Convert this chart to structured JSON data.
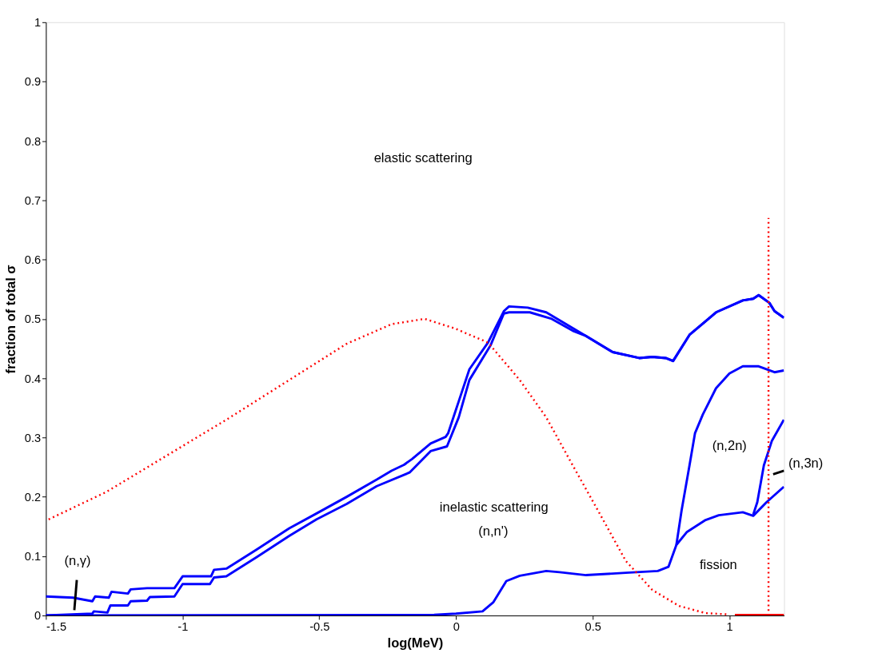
{
  "chart_data": {
    "type": "line",
    "xlabel": "log(MeV)",
    "ylabel": "fraction of total σ",
    "xlim": [
      -1.5,
      1.2
    ],
    "xticks": [
      -1.5,
      {
        "value": -1,
        "label": "-1"
      },
      -0.5,
      0,
      0.5,
      1
    ],
    "ylim": [
      0,
      1
    ],
    "yticks": [
      0,
      0.1,
      0.2,
      0.3,
      0.4,
      0.5,
      0.6,
      0.7,
      0.8,
      0.9,
      1
    ],
    "grid": false,
    "marker": "none",
    "series": [
      {
        "type": "line",
        "color": "#0000ff",
        "line_style": "solid",
        "x": [
          -1.5,
          -1.401,
          -1.33,
          -1.32,
          -1.27,
          -1.26,
          -1.2,
          -1.19,
          -1.13,
          -1.03,
          -1.0,
          -0.896,
          -0.885,
          -0.84,
          -0.73,
          -0.61,
          -0.51,
          -0.4,
          -0.29,
          -0.236,
          -0.19,
          -0.16,
          -0.093,
          -0.038,
          -0.029,
          0.01,
          0.049,
          0.117,
          0.175,
          0.194,
          0.262,
          0.33,
          0.476,
          0.573,
          0.67,
          0.718,
          0.767,
          0.794,
          0.854,
          0.913,
          0.951,
          1.049,
          1.087,
          1.107,
          1.146,
          1.165,
          1.199
        ],
        "values": [
          0.032,
          0.03,
          0.024,
          0.032,
          0.03,
          0.04,
          0.037,
          0.044,
          0.046,
          0.046,
          0.066,
          0.066,
          0.077,
          0.079,
          0.111,
          0.147,
          0.172,
          0.2,
          0.229,
          0.244,
          0.254,
          0.264,
          0.29,
          0.301,
          0.307,
          0.361,
          0.415,
          0.46,
          0.513,
          0.521,
          0.519,
          0.511,
          0.471,
          0.444,
          0.434,
          0.436,
          0.434,
          0.429,
          0.473,
          0.496,
          0.511,
          0.531,
          0.534,
          0.54,
          0.527,
          0.513,
          0.502
        ]
      },
      {
        "type": "line",
        "color": "#0000ff",
        "line_style": "solid",
        "x": [
          -1.5,
          -1.33,
          -1.325,
          -1.275,
          -1.264,
          -1.2,
          -1.19,
          -1.13,
          -1.12,
          -1.03,
          -1.0,
          -0.9,
          -0.885,
          -0.84,
          -0.73,
          -0.61,
          -0.51,
          -0.4,
          -0.29,
          -0.17,
          -0.093,
          -0.033,
          0.01,
          0.049,
          0.126,
          0.175,
          0.194,
          0.27,
          0.35,
          0.427,
          0.476,
          0.573,
          0.67,
          0.718,
          0.767,
          0.794,
          0.854,
          0.913,
          0.951,
          1.049,
          1.087,
          1.107,
          1.146,
          1.165,
          1.199
        ],
        "values": [
          0,
          0.003,
          0.007,
          0.005,
          0.017,
          0.017,
          0.024,
          0.025,
          0.031,
          0.032,
          0.053,
          0.053,
          0.064,
          0.066,
          0.098,
          0.134,
          0.162,
          0.188,
          0.218,
          0.241,
          0.277,
          0.285,
          0.334,
          0.397,
          0.455,
          0.509,
          0.511,
          0.511,
          0.5,
          0.48,
          0.471,
          0.444,
          0.434,
          0.436,
          0.434,
          0.429,
          0.473,
          0.496,
          0.511,
          0.531,
          0.534,
          0.54,
          0.527,
          0.513,
          0.502
        ]
      },
      {
        "type": "line",
        "color": "#0000ff",
        "line_style": "solid",
        "x": [
          -1.5,
          -0.08,
          0,
          0.097,
          0.136,
          0.184,
          0.233,
          0.33,
          0.379,
          0.476,
          0.621,
          0.738,
          0.777,
          0.806,
          0.845,
          0.913,
          0.961,
          1.049,
          1.087,
          1.136,
          1.199
        ],
        "values": [
          0,
          0.001,
          0.003,
          0.007,
          0.022,
          0.058,
          0.067,
          0.075,
          0.073,
          0.068,
          0.072,
          0.075,
          0.082,
          0.119,
          0.141,
          0.161,
          0.169,
          0.174,
          0.168,
          0.191,
          0.217
        ]
      },
      {
        "type": "line",
        "color": "#0000ff",
        "line_style": "solid",
        "x": [
          0.806,
          0.825,
          0.854,
          0.874,
          0.903,
          0.951,
          1.0,
          1.049,
          1.107,
          1.165,
          1.199
        ],
        "values": [
          0.119,
          0.177,
          0.253,
          0.307,
          0.339,
          0.383,
          0.408,
          0.42,
          0.42,
          0.41,
          0.413
        ]
      },
      {
        "type": "line",
        "color": "#0000ff",
        "line_style": "solid",
        "x": [
          1.087,
          1.102,
          1.126,
          1.155,
          1.199
        ],
        "values": [
          0.17,
          0.191,
          0.253,
          0.294,
          0.33
        ]
      },
      {
        "type": "line",
        "color": "#ff0000",
        "line_style": "dotted",
        "x": [
          -1.49,
          -1.28,
          -1.06,
          -0.84,
          -0.62,
          -0.4,
          -0.236,
          -0.115,
          -0.005,
          0.117,
          0.233,
          0.33,
          0.427,
          0.524,
          0.621,
          0.718,
          0.816,
          0.913,
          0.99
        ],
        "values": [
          0.162,
          0.208,
          0.269,
          0.33,
          0.394,
          0.458,
          0.491,
          0.5,
          0.484,
          0.46,
          0.397,
          0.334,
          0.253,
          0.173,
          0.092,
          0.043,
          0.016,
          0.004,
          0.002
        ]
      },
      {
        "type": "line",
        "color": "#ff0000",
        "line_style": "dotted",
        "x": [
          1.143,
          1.143
        ],
        "values": [
          0,
          0.67
        ]
      },
      {
        "type": "line",
        "color": "#ff0000",
        "line_style": "solid",
        "x": [
          1.02,
          1.2
        ],
        "values": [
          0,
          0
        ]
      },
      {
        "type": "line",
        "color": "#000000",
        "line_style": "solid",
        "x": [
          -1.387,
          -1.396
        ],
        "values": [
          0.06,
          0.009
        ]
      },
      {
        "type": "line",
        "color": "#000000",
        "line_style": "solid",
        "x": [
          1.16,
          1.2
        ],
        "values": [
          0.238,
          0.244
        ]
      }
    ],
    "annotations": [
      "elastic scattering",
      "inelastic scattering",
      "(n,n')",
      "(n,γ)",
      "(n,2n)",
      "fission",
      "(n,3n)"
    ]
  }
}
